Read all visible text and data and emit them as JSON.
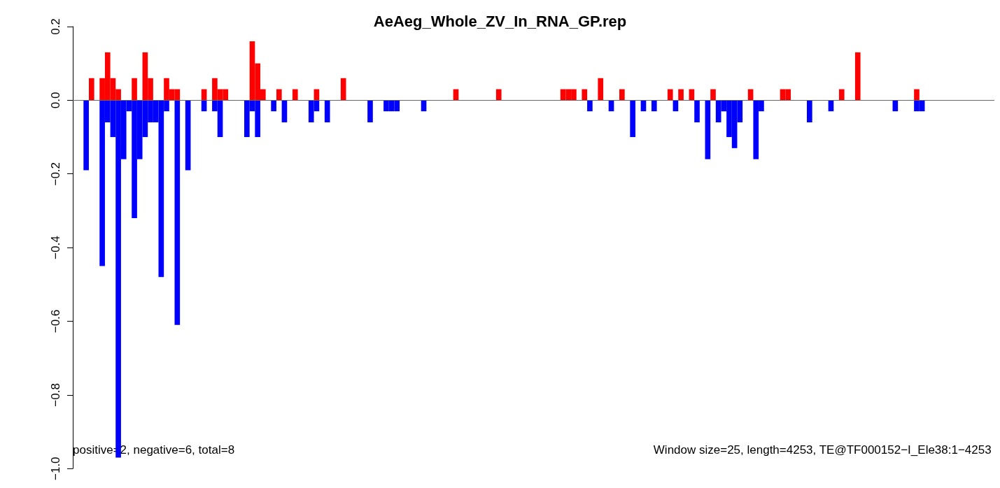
{
  "chart_data": {
    "type": "bar",
    "title": "AeAeg_Whole_ZV_In_RNA_GP.rep",
    "categories": [
      null,
      null,
      null,
      null,
      null,
      null,
      null,
      null,
      null,
      null,
      null,
      null,
      null,
      null,
      null,
      null,
      null,
      null,
      null,
      null,
      null,
      null,
      null,
      null,
      null,
      null,
      null,
      null,
      null,
      null,
      null,
      null,
      null,
      null,
      null,
      null,
      null,
      null,
      null,
      null,
      null,
      null,
      null,
      null,
      null,
      null,
      null,
      null,
      null,
      null,
      null,
      null,
      null,
      null,
      null,
      null,
      null,
      null,
      null,
      null,
      null,
      null,
      null,
      null,
      null,
      null,
      null,
      null,
      null,
      null,
      null,
      null,
      null,
      null,
      null,
      null,
      null,
      null,
      null,
      null,
      null,
      null,
      null,
      null,
      null,
      null,
      null,
      null,
      null,
      null,
      null,
      null,
      null,
      null,
      null,
      null,
      null,
      null,
      null,
      null,
      null,
      null,
      null,
      null,
      null,
      null,
      null,
      null,
      null,
      null,
      null,
      null,
      null,
      null,
      null,
      null,
      null,
      null,
      null,
      null,
      null,
      null,
      null,
      null,
      null,
      null,
      null,
      null,
      null,
      null,
      null,
      null,
      null,
      null,
      null,
      null,
      null,
      null,
      null,
      null,
      null,
      null,
      null,
      null,
      null,
      null,
      null,
      null,
      null,
      null,
      null,
      null,
      null,
      null,
      null,
      null,
      null,
      null,
      null,
      null,
      null,
      null,
      null,
      null,
      null,
      null,
      null,
      null,
      null,
      null,
      null,
      null
    ],
    "stacked": true,
    "series": [
      {
        "color": "#ff0000",
        "values": [
          null,
          null,
          null,
          0.06,
          null,
          0.06,
          0.13,
          0.06,
          0.03,
          null,
          null,
          0.06,
          null,
          0.13,
          0.06,
          null,
          null,
          0.06,
          0.03,
          0.03,
          null,
          null,
          null,
          null,
          0.03,
          null,
          0.06,
          0.03,
          0.03,
          null,
          null,
          null,
          null,
          0.16,
          0.1,
          0.03,
          null,
          null,
          0.03,
          null,
          null,
          0.03,
          null,
          null,
          null,
          0.03,
          null,
          null,
          null,
          null,
          0.06,
          null,
          null,
          null,
          null,
          null,
          null,
          null,
          null,
          null,
          null,
          null,
          null,
          null,
          null,
          null,
          null,
          null,
          null,
          null,
          null,
          0.03,
          null,
          null,
          null,
          null,
          null,
          null,
          null,
          0.03,
          null,
          null,
          null,
          null,
          null,
          null,
          null,
          null,
          null,
          null,
          null,
          0.03,
          0.03,
          0.03,
          null,
          0.03,
          null,
          null,
          0.06,
          null,
          null,
          null,
          0.03,
          null,
          null,
          null,
          null,
          null,
          null,
          null,
          null,
          0.03,
          null,
          0.03,
          null,
          0.03,
          null,
          null,
          null,
          0.03,
          null,
          null,
          null,
          null,
          null,
          null,
          0.03,
          null,
          null,
          null,
          null,
          null,
          0.03,
          0.03,
          null,
          null,
          null,
          null,
          null,
          null,
          null,
          null,
          null,
          0.03,
          null,
          null,
          0.13,
          null,
          null,
          null,
          null,
          null,
          null,
          null,
          null,
          null,
          null,
          0.03,
          null,
          null,
          null,
          null,
          null,
          null,
          null,
          null,
          null,
          null,
          null,
          null,
          null,
          null
        ]
      },
      {
        "color": "#0000ff",
        "values": [
          null,
          null,
          -0.19,
          null,
          null,
          -0.45,
          -0.06,
          -0.1,
          -0.97,
          -0.16,
          -0.03,
          -0.32,
          -0.16,
          -0.1,
          -0.06,
          -0.06,
          -0.48,
          -0.03,
          null,
          -0.61,
          null,
          -0.19,
          null,
          null,
          -0.03,
          null,
          -0.03,
          -0.1,
          null,
          null,
          null,
          null,
          -0.1,
          -0.03,
          -0.1,
          null,
          null,
          -0.03,
          null,
          -0.06,
          null,
          null,
          null,
          null,
          -0.06,
          -0.03,
          null,
          -0.06,
          null,
          null,
          null,
          null,
          null,
          null,
          null,
          -0.06,
          null,
          null,
          -0.03,
          -0.03,
          -0.03,
          null,
          null,
          null,
          null,
          -0.03,
          null,
          null,
          null,
          null,
          null,
          null,
          null,
          null,
          null,
          null,
          null,
          null,
          null,
          null,
          null,
          null,
          null,
          null,
          null,
          null,
          null,
          null,
          null,
          null,
          null,
          null,
          null,
          null,
          null,
          null,
          -0.03,
          null,
          null,
          null,
          -0.03,
          null,
          null,
          null,
          -0.1,
          null,
          -0.03,
          null,
          -0.03,
          null,
          null,
          null,
          -0.03,
          null,
          null,
          null,
          -0.06,
          null,
          -0.16,
          null,
          -0.06,
          -0.03,
          -0.1,
          -0.13,
          -0.06,
          null,
          null,
          -0.16,
          -0.03,
          null,
          null,
          null,
          null,
          null,
          null,
          null,
          null,
          -0.06,
          null,
          null,
          null,
          -0.03,
          null,
          null,
          null,
          null,
          null,
          null,
          null,
          null,
          null,
          null,
          null,
          -0.03,
          null,
          null,
          null,
          -0.03,
          -0.03,
          null,
          null,
          null,
          null,
          null,
          null,
          null,
          null,
          null,
          null,
          null,
          null,
          null
        ]
      }
    ],
    "ylim": [
      -1,
      0.2
    ],
    "yticks": [
      {
        "value": -1,
        "label": "−1.0"
      },
      {
        "value": -0.8,
        "label": "−0.8"
      },
      {
        "value": -0.6,
        "label": "−0.6"
      },
      {
        "value": -0.4,
        "label": "−0.4"
      },
      {
        "value": -0.2,
        "label": "−0.2"
      },
      {
        "value": 0,
        "label": "0.0"
      },
      {
        "value": 0.2,
        "label": "0.2"
      }
    ],
    "ref_lines": [
      {
        "axis": "y",
        "value": 0,
        "color": "#666666"
      }
    ],
    "annotations": [
      "positive=2, negative=6, total=8",
      "Window size=25, length=4253, TE@TF000152−I_Ele38:1−4253"
    ]
  }
}
